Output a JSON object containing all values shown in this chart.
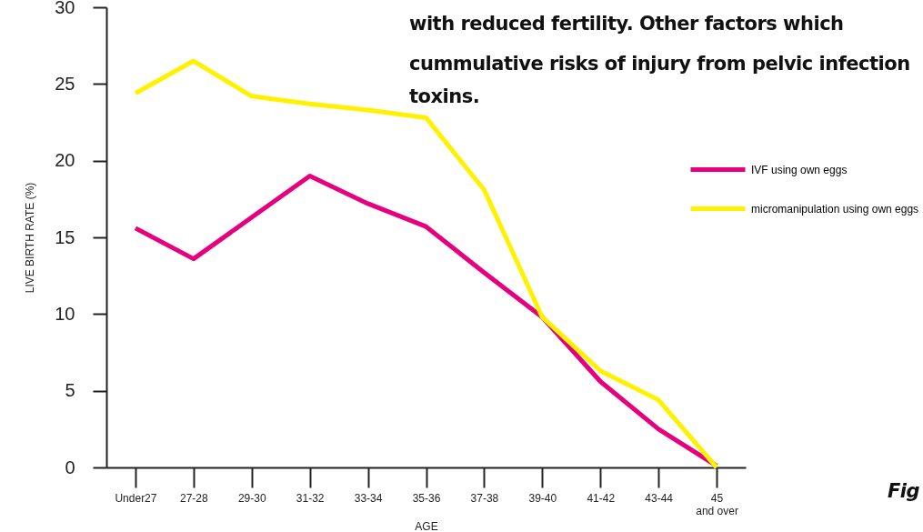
{
  "chart_data": {
    "type": "line",
    "xlabel": "AGE",
    "ylabel": "LIVE BIRTH RATE (%)",
    "categories": [
      "Under27",
      "27-28",
      "29-30",
      "31-32",
      "33-34",
      "35-36",
      "37-38",
      "39-40",
      "41-42",
      "43-44",
      "45\nand over"
    ],
    "series": [
      {
        "name": "IVF using own eggs",
        "color": "#e6007e",
        "values": [
          15.6,
          13.6,
          16.3,
          19.0,
          17.2,
          15.7,
          12.7,
          9.8,
          5.6,
          2.5,
          0.1
        ]
      },
      {
        "name": "micromanipulation using own eggs",
        "color": "#fff200",
        "values": [
          24.4,
          26.5,
          24.2,
          23.7,
          23.3,
          22.8,
          18.1,
          9.8,
          6.3,
          4.4,
          0
        ]
      }
    ],
    "ylim": [
      0,
      30
    ],
    "yticks": [
      0,
      5,
      10,
      15,
      20,
      25,
      30
    ],
    "grid": false,
    "legend": "top right",
    "marker": "none",
    "line_style": "solid",
    "annotations": [
      "with reduced fertility. Other factors which",
      "cummulative risks of injury from pelvic infection",
      "toxins.",
      "Fig"
    ]
  }
}
